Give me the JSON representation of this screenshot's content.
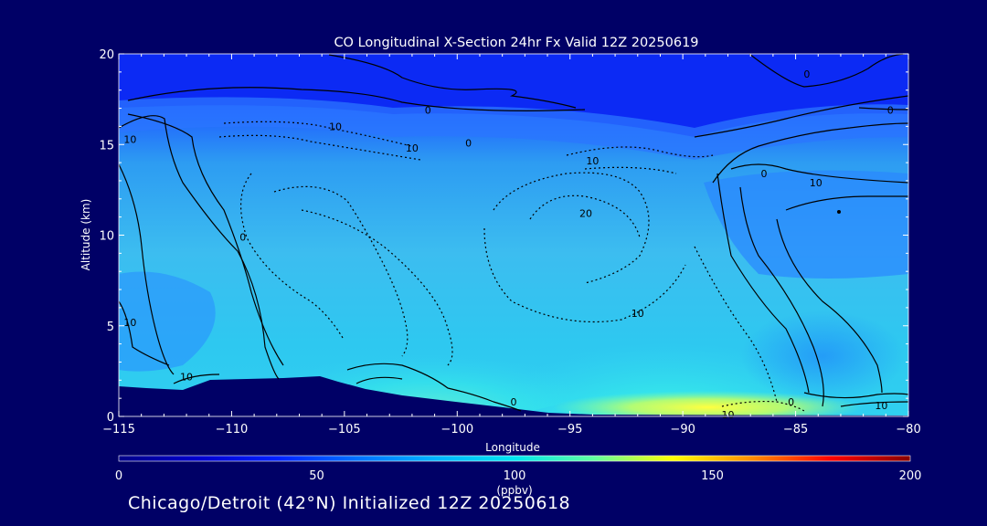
{
  "chart_data": {
    "type": "heatmap",
    "title": "CO Longitudinal X-Section 24hr  Fx Valid 12Z 20250619",
    "xlabel": "Longitude",
    "ylabel": "Altitude (km)",
    "xlim": [
      -115,
      -80
    ],
    "ylim": [
      0,
      20
    ],
    "x_ticks": [
      "−115",
      "−110",
      "−105",
      "−100",
      "−95",
      "−90",
      "−85",
      "−80"
    ],
    "y_ticks": [
      "0",
      "5",
      "10",
      "15",
      "20"
    ],
    "colorbar": {
      "range": [
        0,
        200
      ],
      "ticks": [
        "0",
        "50",
        "100",
        "150",
        "200"
      ],
      "unit": "(ppbv)",
      "colors": [
        "#000088",
        "#0000cc",
        "#0020ff",
        "#0070ff",
        "#00b4ff",
        "#00e6f0",
        "#60ffa0",
        "#ffff00",
        "#ff8c00",
        "#ff0000",
        "#880000"
      ]
    },
    "contour_labels": [
      {
        "lon": -101.3,
        "alt": 16.9,
        "text": "0"
      },
      {
        "lon": -99.5,
        "alt": 15.1,
        "text": "0"
      },
      {
        "lon": -84.5,
        "alt": 18.9,
        "text": "0"
      },
      {
        "lon": -80.8,
        "alt": 16.9,
        "text": "0"
      },
      {
        "lon": -105.4,
        "alt": 16.0,
        "text": "10"
      },
      {
        "lon": -102.0,
        "alt": 14.8,
        "text": "10"
      },
      {
        "lon": -94.0,
        "alt": 14.1,
        "text": "10"
      },
      {
        "lon": -114.5,
        "alt": 15.3,
        "text": "10"
      },
      {
        "lon": -109.5,
        "alt": 9.9,
        "text": "0"
      },
      {
        "lon": -94.3,
        "alt": 11.2,
        "text": "20"
      },
      {
        "lon": -86.4,
        "alt": 13.4,
        "text": "0"
      },
      {
        "lon": -84.1,
        "alt": 12.9,
        "text": "10"
      },
      {
        "lon": -114.5,
        "alt": 5.2,
        "text": "10"
      },
      {
        "lon": -112.0,
        "alt": 2.2,
        "text": "10"
      },
      {
        "lon": -92.0,
        "alt": 5.7,
        "text": "10"
      },
      {
        "lon": -97.5,
        "alt": 0.8,
        "text": "0"
      },
      {
        "lon": -85.2,
        "alt": 0.8,
        "text": "0"
      },
      {
        "lon": -88.0,
        "alt": 0.1,
        "text": "10"
      },
      {
        "lon": -81.2,
        "alt": 0.6,
        "text": "10"
      }
    ]
  },
  "footer": "Chicago/Detroit (42°N) Initialized 12Z 20250618"
}
